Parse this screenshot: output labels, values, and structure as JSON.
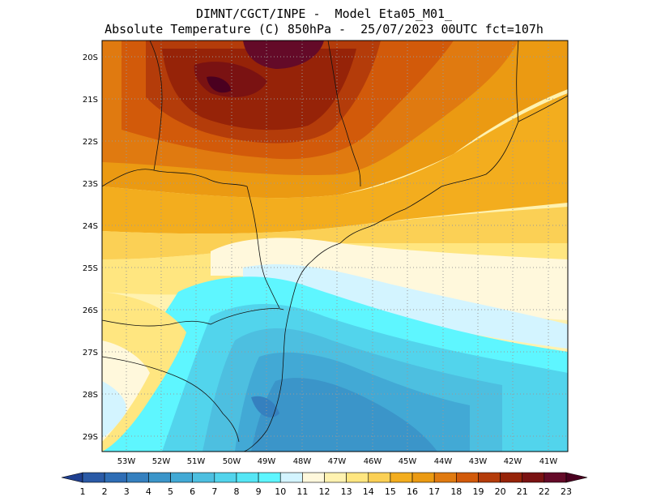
{
  "header": {
    "line1": "DIMNT/CGCT/INPE -  Model Eta05_M01_",
    "line2": "Absolute Temperature (C) 850hPa -  25/07/2023 00UTC fct=107h"
  },
  "map": {
    "variable": "Absolute Temperature",
    "units": "C",
    "level": "850hPa",
    "lat_labels": [
      "20S",
      "21S",
      "22S",
      "23S",
      "24S",
      "25S",
      "26S",
      "27S",
      "28S",
      "29S"
    ],
    "lon_labels": [
      "53W",
      "52W",
      "51W",
      "50W",
      "49W",
      "48W",
      "47W",
      "46W",
      "45W",
      "44W",
      "43W",
      "42W",
      "41W"
    ]
  },
  "colorbar": {
    "labels": [
      "1",
      "2",
      "3",
      "4",
      "5",
      "6",
      "7",
      "8",
      "9",
      "10",
      "11",
      "12",
      "13",
      "14",
      "15",
      "16",
      "17",
      "18",
      "19",
      "20",
      "21",
      "22",
      "23"
    ],
    "colors": [
      "#1f3f8f",
      "#2a5aa6",
      "#2e6db5",
      "#3580bf",
      "#3b95c9",
      "#42a9d5",
      "#4dbfe0",
      "#52d4ec",
      "#55e6f5",
      "#5ef6ff",
      "#d3f4ff",
      "#fff8dc",
      "#fff2b0",
      "#ffe680",
      "#fbd055",
      "#f3ad1e",
      "#eb9a12",
      "#e07a10",
      "#d25a0a",
      "#b43c0a",
      "#962308",
      "#7a1212",
      "#640a28",
      "#4a0020"
    ]
  }
}
